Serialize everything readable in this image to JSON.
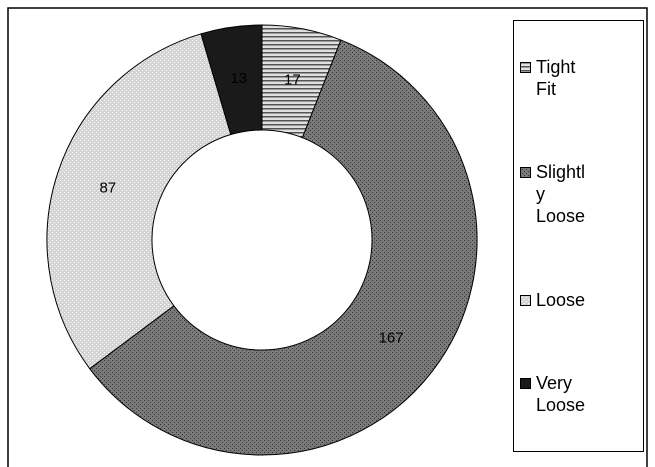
{
  "chart_data": {
    "type": "donut",
    "categories": [
      "Tight Fit",
      "Slightly Loose",
      "Loose",
      "Very Loose"
    ],
    "values": [
      17,
      167,
      87,
      13
    ],
    "colors": [
      "#e0e0e0",
      "#7a7a7a",
      "#d4d4d4",
      "#1a1a1a"
    ],
    "legend": "right"
  }
}
